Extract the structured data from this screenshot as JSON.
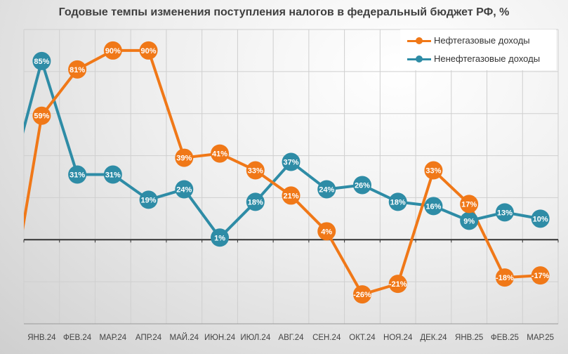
{
  "chart_data": {
    "type": "line",
    "title": "Годовые темпы изменения поступления налогов в федеральный бюджет РФ, %",
    "xlabel": "",
    "ylabel": "",
    "ylim": [
      -40,
      100
    ],
    "grid": true,
    "legend_position": "top-right",
    "categories": [
      "ЯНВ.24",
      "ФЕВ.24",
      "МАР.24",
      "АПР.24",
      "МАЙ.24",
      "ИЮН.24",
      "ИЮЛ.24",
      "АВГ.24",
      "СЕН.24",
      "ОКТ.24",
      "НОЯ.24",
      "ДЕК.24",
      "ЯНВ.25",
      "ФЕВ.25",
      "МАР.25"
    ],
    "series": [
      {
        "name": "Нефтегазовые доходы",
        "color": "#f07818",
        "prior_value": -42,
        "values": [
          59,
          81,
          90,
          90,
          39,
          41,
          33,
          21,
          4,
          -26,
          -21,
          33,
          17,
          -18,
          -17
        ]
      },
      {
        "name": "Ненефтегазовые доходы",
        "color": "#2e8ca6",
        "prior_value": 21,
        "values": [
          85,
          31,
          31,
          19,
          24,
          1,
          18,
          37,
          24,
          26,
          18,
          16,
          9,
          13,
          10
        ]
      }
    ]
  }
}
